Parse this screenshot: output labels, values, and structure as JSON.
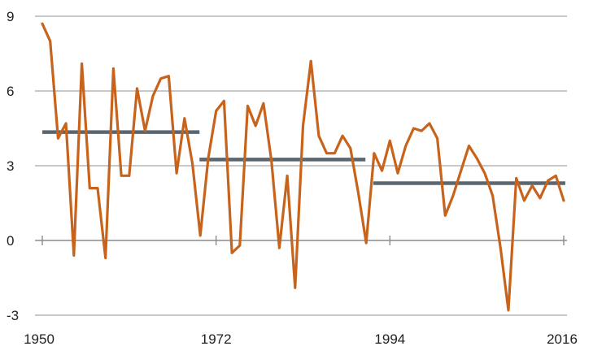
{
  "chart_data": {
    "type": "line",
    "title": "",
    "xlabel": "",
    "ylabel": "",
    "xlim": [
      1950,
      2016
    ],
    "ylim": [
      -3,
      9
    ],
    "y_ticks": [
      -3,
      0,
      3,
      6,
      9
    ],
    "y_tick_labels": [
      "-3",
      "0",
      "3",
      "6",
      "9"
    ],
    "x_ticks": [
      1950,
      1972,
      1994,
      2016
    ],
    "x_tick_labels": [
      "1950",
      "1972",
      "1994",
      "2016"
    ],
    "grid": "horizontal",
    "legend": "none",
    "colors": {
      "series": "#C8631C",
      "averages": "#5B6770",
      "grid": "#A6A6A6",
      "axis": "#8C8C8C"
    },
    "series": [
      {
        "x": [
          1950,
          1951,
          1952,
          1953,
          1954,
          1955,
          1956,
          1957,
          1958,
          1959,
          1960,
          1961,
          1962,
          1963,
          1964,
          1965,
          1966,
          1967,
          1968,
          1969,
          1970,
          1971,
          1972,
          1973,
          1974,
          1975,
          1976,
          1977,
          1978,
          1979,
          1980,
          1981,
          1982,
          1983,
          1984,
          1985,
          1986,
          1987,
          1988,
          1989,
          1990,
          1991,
          1992,
          1993,
          1994,
          1995,
          1996,
          1997,
          1998,
          1999,
          2000,
          2001,
          2002,
          2003,
          2004,
          2005,
          2006,
          2007,
          2008,
          2009,
          2010,
          2011,
          2012,
          2013,
          2014,
          2015,
          2016
        ],
        "values": [
          8.7,
          8.0,
          4.1,
          4.7,
          -0.6,
          7.1,
          2.1,
          2.1,
          -0.7,
          6.9,
          2.6,
          2.6,
          6.1,
          4.4,
          5.8,
          6.5,
          6.6,
          2.7,
          4.9,
          3.1,
          0.2,
          3.3,
          5.2,
          5.6,
          -0.5,
          -0.2,
          5.4,
          4.6,
          5.5,
          3.2,
          -0.3,
          2.6,
          -1.9,
          4.6,
          7.2,
          4.2,
          3.5,
          3.5,
          4.2,
          3.7,
          1.9,
          -0.1,
          3.5,
          2.8,
          4.0,
          2.7,
          3.8,
          4.5,
          4.4,
          4.7,
          4.1,
          1.0,
          1.8,
          2.8,
          3.8,
          3.3,
          2.7,
          1.8,
          -0.3,
          -2.8,
          2.5,
          1.6,
          2.2,
          1.7,
          2.4,
          2.6,
          1.6
        ]
      }
    ],
    "period_averages": [
      {
        "from": 1950,
        "to": 1969.9,
        "value": 4.35
      },
      {
        "from": 1969.9,
        "to": 1990.9,
        "value": 3.25
      },
      {
        "from": 1991.9,
        "to": 2016.2,
        "value": 2.3
      }
    ]
  }
}
